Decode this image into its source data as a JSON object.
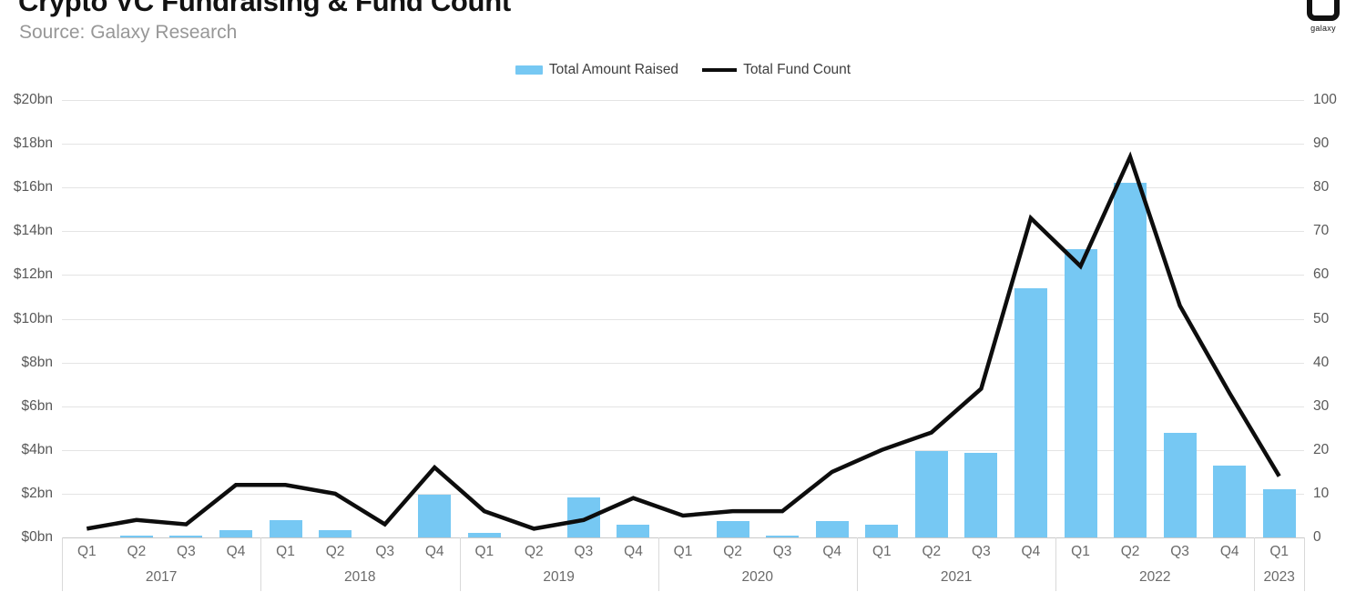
{
  "header": {
    "title": "Crypto VC Fundraising & Fund Count",
    "source": "Source: Galaxy Research",
    "logo_text": "galaxy"
  },
  "legend": {
    "bar_label": "Total Amount Raised",
    "line_label": "Total Fund Count"
  },
  "axes": {
    "left_ticks": [
      "$20bn",
      "$18bn",
      "$16bn",
      "$14bn",
      "$12bn",
      "$10bn",
      "$8bn",
      "$6bn",
      "$4bn",
      "$2bn",
      "$0bn"
    ],
    "right_ticks": [
      "100",
      "90",
      "80",
      "70",
      "60",
      "50",
      "40",
      "30",
      "20",
      "10",
      "0"
    ]
  },
  "colors": {
    "bar": "#76C8F3",
    "line": "#0d0d0d",
    "grid": "#e4e4e4",
    "baseline": "#c9c9c9",
    "separator": "#d9d9d9"
  },
  "chart_data": {
    "type": "bar",
    "subtype": "combo-bar-line-dual-axis",
    "title": "Crypto VC Fundraising & Fund Count",
    "source": "Source: Galaxy Research",
    "legend_position": "top-center",
    "grid": true,
    "categories": [
      "Q1 2017",
      "Q2 2017",
      "Q3 2017",
      "Q4 2017",
      "Q1 2018",
      "Q2 2018",
      "Q3 2018",
      "Q4 2018",
      "Q1 2019",
      "Q2 2019",
      "Q3 2019",
      "Q4 2019",
      "Q1 2020",
      "Q2 2020",
      "Q3 2020",
      "Q4 2020",
      "Q1 2021",
      "Q2 2021",
      "Q3 2021",
      "Q4 2021",
      "Q1 2022",
      "Q2 2022",
      "Q3 2022",
      "Q4 2022",
      "Q1 2023"
    ],
    "x_groups": [
      {
        "year": "2017",
        "quarters": [
          "Q1",
          "Q2",
          "Q3",
          "Q4"
        ]
      },
      {
        "year": "2018",
        "quarters": [
          "Q1",
          "Q2",
          "Q3",
          "Q4"
        ]
      },
      {
        "year": "2019",
        "quarters": [
          "Q1",
          "Q2",
          "Q3",
          "Q4"
        ]
      },
      {
        "year": "2020",
        "quarters": [
          "Q1",
          "Q2",
          "Q3",
          "Q4"
        ]
      },
      {
        "year": "2021",
        "quarters": [
          "Q1",
          "Q2",
          "Q3",
          "Q4"
        ]
      },
      {
        "year": "2022",
        "quarters": [
          "Q1",
          "Q2",
          "Q3",
          "Q4"
        ]
      },
      {
        "year": "2023",
        "quarters": [
          "Q1"
        ]
      }
    ],
    "series": [
      {
        "name": "Total Amount Raised",
        "type": "bar",
        "axis": "left",
        "unit": "USD billions",
        "values": [
          0,
          0.1,
          0.08,
          0.35,
          0.8,
          0.35,
          0,
          1.95,
          0.2,
          0,
          1.85,
          0.6,
          0,
          0.75,
          0.1,
          0.75,
          0.6,
          3.95,
          3.85,
          11.4,
          13.2,
          16.2,
          4.8,
          3.3,
          2.2
        ]
      },
      {
        "name": "Total Fund Count",
        "type": "line",
        "axis": "right",
        "unit": "funds",
        "values": [
          2,
          4,
          3,
          12,
          12,
          10,
          3,
          16,
          6,
          2,
          4,
          9,
          5,
          6,
          6,
          15,
          20,
          24,
          34,
          73,
          62,
          87,
          53,
          33,
          14
        ]
      }
    ],
    "left_axis": {
      "min": 0,
      "max": 20,
      "tick_step": 2,
      "format": "$Nbn"
    },
    "right_axis": {
      "min": 0,
      "max": 100,
      "tick_step": 10
    }
  }
}
